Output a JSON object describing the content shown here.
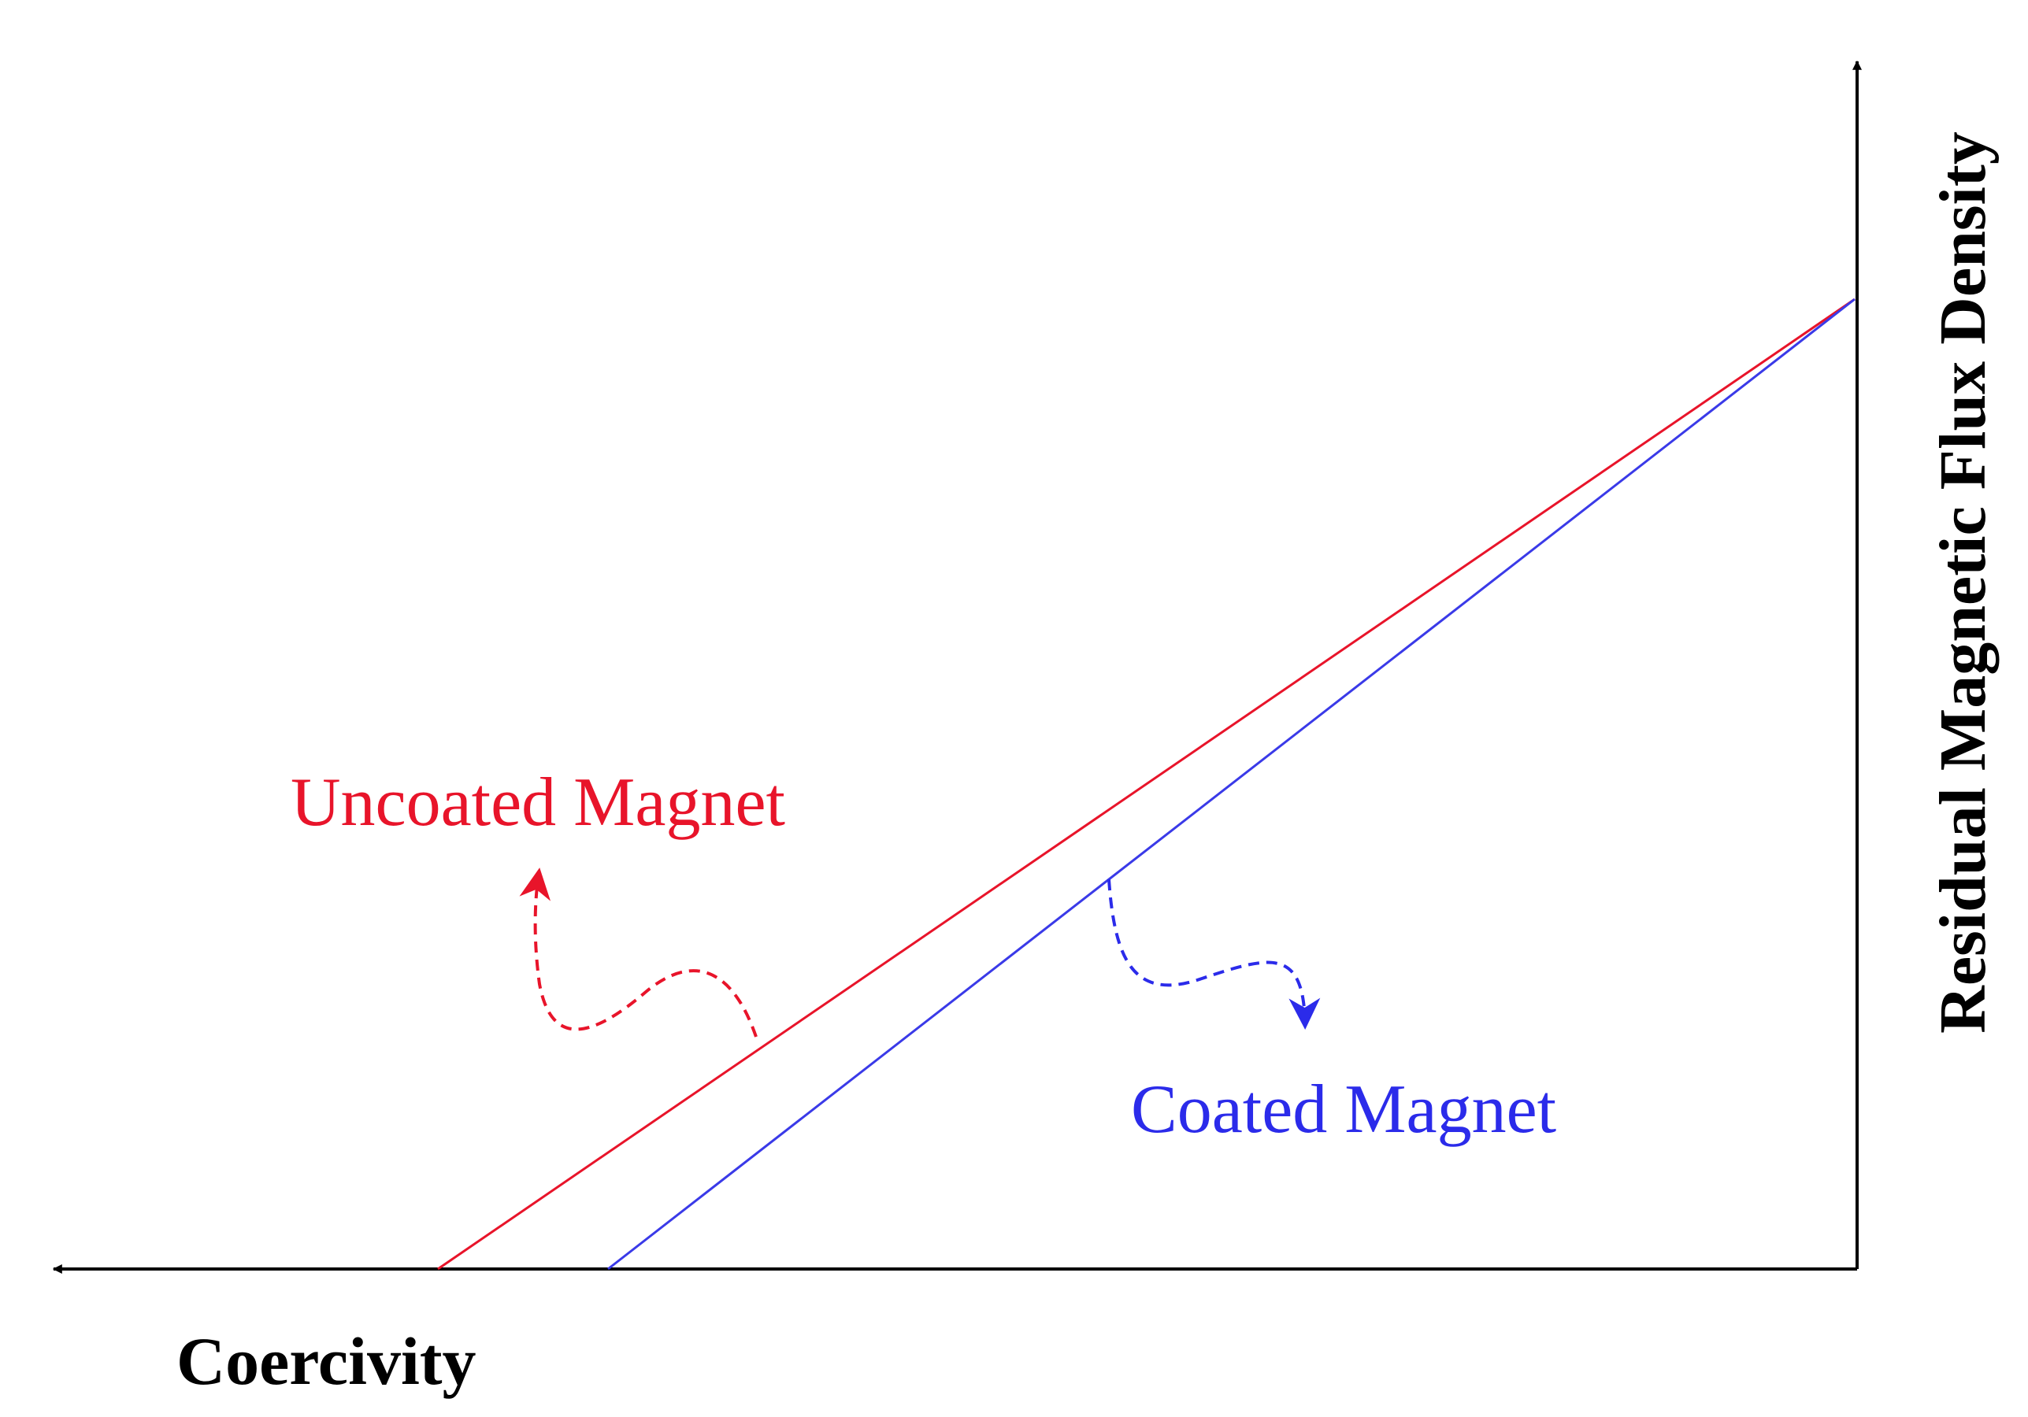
{
  "labels": {
    "uncoated": "Uncoated Magnet",
    "coated": "Coated Magnet"
  },
  "axes": {
    "x_label": "Coercivity",
    "y_label": "Residual Magnetic Flux Density"
  }
}
